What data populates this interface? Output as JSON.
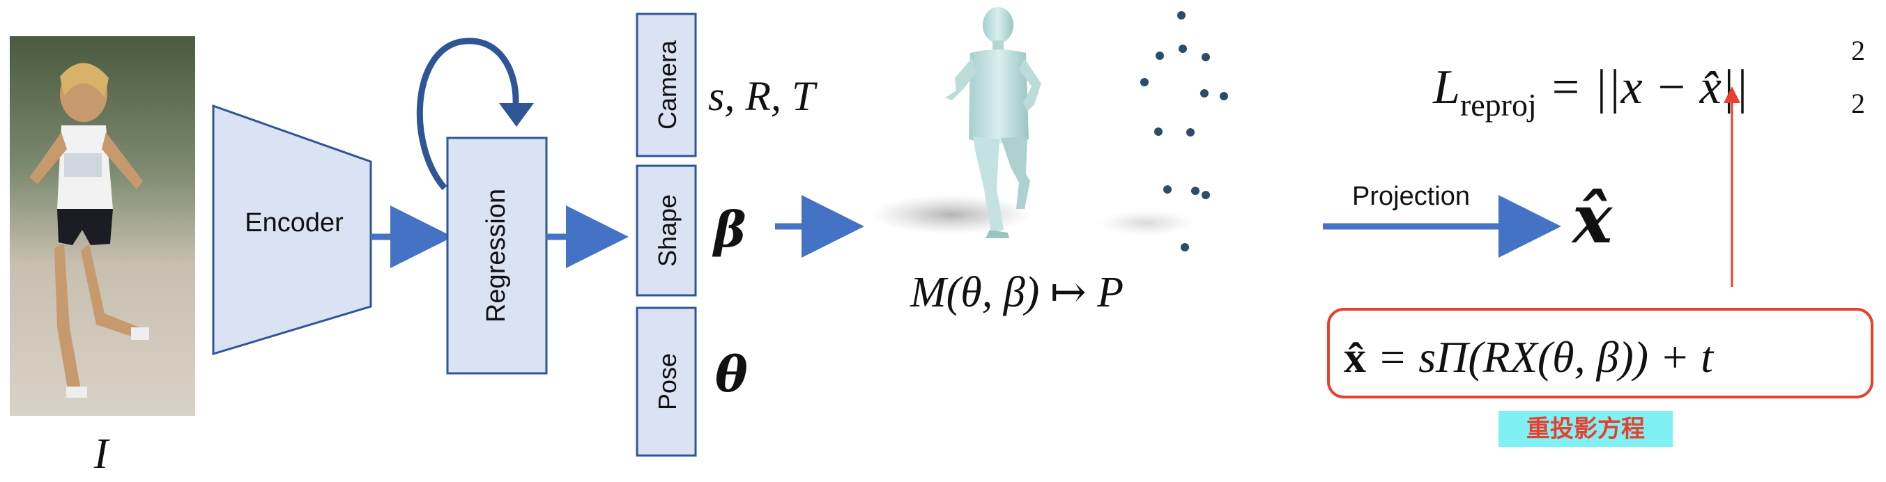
{
  "input": {
    "symbol": "I"
  },
  "encoder": {
    "label": "Encoder"
  },
  "regression": {
    "label": "Regression"
  },
  "params": [
    {
      "tag": "Camera",
      "symbol": "s, R, T"
    },
    {
      "tag": "Shape",
      "symbol": "β"
    },
    {
      "tag": "Pose",
      "symbol": "θ"
    }
  ],
  "mesh": {
    "formula_main": "M(θ, β) ↦ P"
  },
  "projection": {
    "label": "Projection",
    "output_symbol": "x̂"
  },
  "loss": {
    "prefix": "L",
    "subscript": "reproj",
    "body": " = ||x − x̂||",
    "sub": "2",
    "sup": "2"
  },
  "reprojection_equation": {
    "lhs": "x̂",
    "rhs": " = sΠ(RX(θ, β)) + t",
    "note": "重投影方程"
  },
  "colors": {
    "accent_blue": "#4472c4",
    "box_fill": "#dae3f3",
    "box_border": "#2f5597",
    "highlight_red": "#e8402e",
    "highlight_bg": "#7ff0f3"
  }
}
